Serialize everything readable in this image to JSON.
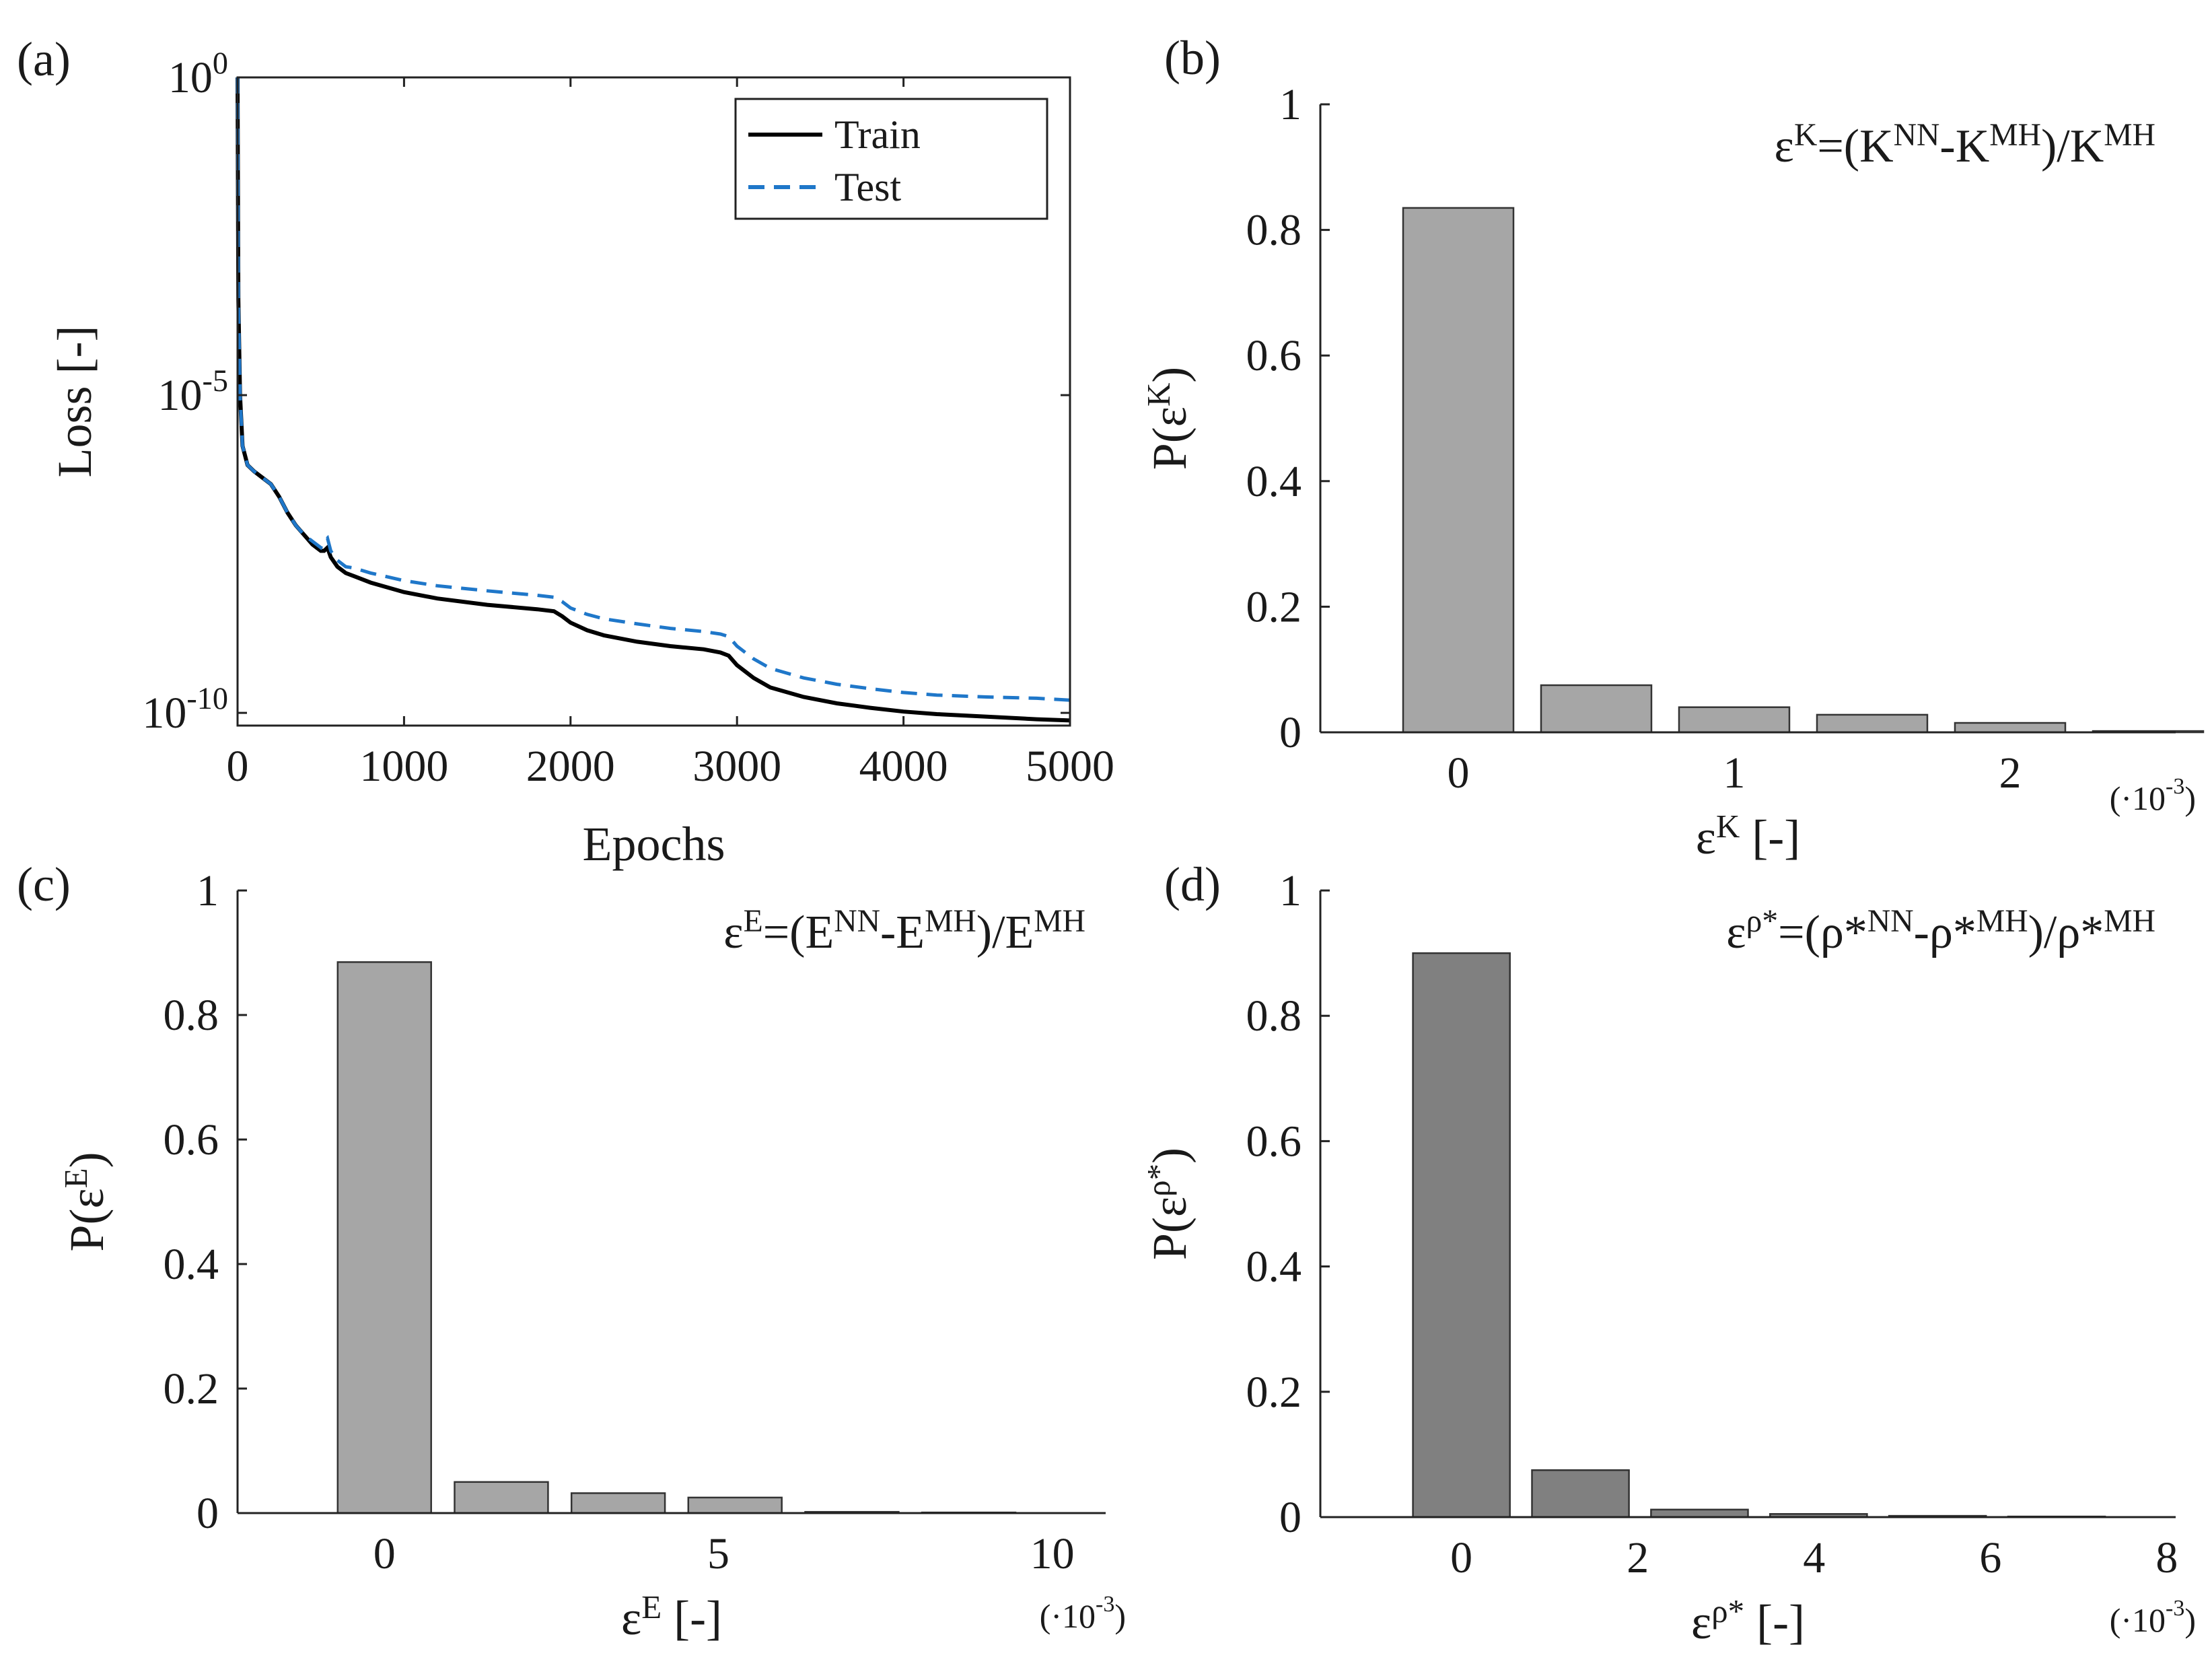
{
  "chart_data": [
    {
      "id": "a",
      "type": "line",
      "panel_label": "(a)",
      "xlabel": "Epochs",
      "ylabel": "Loss [-]",
      "xlim": [
        0,
        5000
      ],
      "yscale": "log",
      "ylim_log10": [
        -10.2,
        0
      ],
      "xticks": [
        0,
        1000,
        2000,
        3000,
        4000,
        5000
      ],
      "xtick_labels": [
        "0",
        "1000",
        "2000",
        "3000",
        "4000",
        "5000"
      ],
      "yticks_log10": [
        0,
        -5,
        -10
      ],
      "ytick_base": "10",
      "ytick_exponents": [
        "0",
        "-5",
        "-10"
      ],
      "legend": {
        "position": "top-right",
        "entries": [
          "Train",
          "Test"
        ]
      },
      "series": [
        {
          "name": "Train",
          "color": "#000000",
          "dash": "solid",
          "x": [
            0,
            5,
            15,
            30,
            60,
            100,
            150,
            200,
            250,
            300,
            350,
            400,
            450,
            500,
            520,
            540,
            560,
            600,
            650,
            700,
            800,
            1000,
            1200,
            1500,
            1800,
            1900,
            1950,
            2000,
            2100,
            2200,
            2400,
            2600,
            2800,
            2900,
            2950,
            3000,
            3100,
            3200,
            3400,
            3600,
            3800,
            4000,
            4200,
            4500,
            4800,
            5000
          ],
          "y_log10": [
            0,
            -3.5,
            -5.0,
            -5.8,
            -6.1,
            -6.2,
            -6.3,
            -6.4,
            -6.6,
            -6.85,
            -7.05,
            -7.2,
            -7.35,
            -7.45,
            -7.45,
            -7.4,
            -7.55,
            -7.7,
            -7.8,
            -7.85,
            -7.95,
            -8.1,
            -8.2,
            -8.3,
            -8.37,
            -8.4,
            -8.48,
            -8.58,
            -8.7,
            -8.78,
            -8.88,
            -8.95,
            -9.0,
            -9.05,
            -9.1,
            -9.25,
            -9.45,
            -9.6,
            -9.75,
            -9.85,
            -9.92,
            -9.98,
            -10.02,
            -10.06,
            -10.1,
            -10.12
          ]
        },
        {
          "name": "Test",
          "color": "#1f77c9",
          "dash": "dashed",
          "x": [
            0,
            5,
            15,
            30,
            60,
            100,
            150,
            200,
            250,
            300,
            350,
            400,
            450,
            500,
            520,
            540,
            560,
            600,
            650,
            700,
            800,
            1000,
            1200,
            1500,
            1800,
            1900,
            1950,
            2000,
            2100,
            2200,
            2400,
            2600,
            2800,
            2900,
            2950,
            3000,
            3100,
            3200,
            3400,
            3600,
            3800,
            4000,
            4200,
            4500,
            4800,
            5000
          ],
          "y_log10": [
            0,
            -3.5,
            -5.0,
            -5.8,
            -6.1,
            -6.2,
            -6.3,
            -6.4,
            -6.6,
            -6.85,
            -7.05,
            -7.2,
            -7.3,
            -7.4,
            -7.3,
            -7.25,
            -7.45,
            -7.6,
            -7.7,
            -7.72,
            -7.8,
            -7.92,
            -8.0,
            -8.08,
            -8.15,
            -8.18,
            -8.25,
            -8.35,
            -8.45,
            -8.52,
            -8.6,
            -8.67,
            -8.72,
            -8.76,
            -8.8,
            -8.95,
            -9.15,
            -9.3,
            -9.45,
            -9.55,
            -9.62,
            -9.68,
            -9.72,
            -9.75,
            -9.77,
            -9.8
          ]
        }
      ]
    },
    {
      "id": "b",
      "type": "bar",
      "panel_label": "(b)",
      "formula": "εK=(KNN-KMH)/KMH",
      "formula_parts": [
        "ε",
        "K",
        "=(K",
        "NN",
        "-K",
        "MH",
        ")/K",
        "MH"
      ],
      "xlabel_parts": [
        "ε",
        "K",
        " [-]"
      ],
      "ylabel_parts": [
        "P(ε",
        "K",
        ")"
      ],
      "multiplier": "(·10-3)",
      "multiplier_parts": [
        "(·10",
        "-3",
        ")"
      ],
      "bar_color": "#a6a6a6",
      "xlim": [
        -0.5,
        2.6
      ],
      "ylim": [
        0,
        1
      ],
      "x": [
        0,
        0.5,
        1.0,
        1.5,
        2.0,
        2.5
      ],
      "bar_width": 0.4,
      "values": [
        0.835,
        0.075,
        0.04,
        0.028,
        0.015,
        0.002
      ],
      "xticks": [
        0,
        1,
        2
      ],
      "xtick_labels": [
        "0",
        "1",
        "2"
      ],
      "yticks": [
        0,
        0.2,
        0.4,
        0.6,
        0.8,
        1
      ],
      "ytick_labels": [
        "0",
        "0.2",
        "0.4",
        "0.6",
        "0.8",
        "1"
      ]
    },
    {
      "id": "c",
      "type": "bar",
      "panel_label": "(c)",
      "formula": "εE=(ENN-EMH)/EMH",
      "formula_parts": [
        "ε",
        "E",
        "=(E",
        "NN",
        "-E",
        "MH",
        ")/E",
        "MH"
      ],
      "xlabel_parts": [
        "ε",
        "E",
        " [-]"
      ],
      "ylabel_parts": [
        "P(ε",
        "E",
        ")"
      ],
      "multiplier": "(·10-3)",
      "multiplier_parts": [
        "(·10",
        "-3",
        ")"
      ],
      "bar_color": "#a6a6a6",
      "xlim": [
        -2.2,
        10.8
      ],
      "ylim": [
        0,
        1
      ],
      "x": [
        0,
        1.75,
        3.5,
        5.25,
        7.0,
        8.75
      ],
      "bar_width": 1.4,
      "values": [
        0.885,
        0.05,
        0.032,
        0.025,
        0.002,
        0.001
      ],
      "xticks": [
        0,
        5,
        10
      ],
      "xtick_labels": [
        "0",
        "5",
        "10"
      ],
      "yticks": [
        0,
        0.2,
        0.4,
        0.6,
        0.8,
        1
      ],
      "ytick_labels": [
        "0",
        "0.2",
        "0.4",
        "0.6",
        "0.8",
        "1"
      ]
    },
    {
      "id": "d",
      "type": "bar",
      "panel_label": "(d)",
      "formula": "ερ*=(ρ*NN-ρ*MH)/ρ*MH",
      "formula_parts": [
        "ε",
        "ρ*",
        "=(ρ*",
        "NN",
        "-ρ*",
        "MH",
        ")/ρ*",
        "MH"
      ],
      "xlabel_parts": [
        "ε",
        "ρ*",
        " [-]"
      ],
      "ylabel_parts": [
        "P(ε",
        "ρ*",
        ")"
      ],
      "multiplier": "(·10-3)",
      "multiplier_parts": [
        "(·10",
        "-3",
        ")"
      ],
      "bar_color": "#808080",
      "xlim": [
        -1.6,
        8.1
      ],
      "ylim": [
        0,
        1
      ],
      "x": [
        0,
        1.35,
        2.7,
        4.05,
        5.4,
        6.75
      ],
      "bar_width": 1.1,
      "values": [
        0.9,
        0.075,
        0.012,
        0.005,
        0.002,
        0.001
      ],
      "xticks": [
        0,
        2,
        4,
        6,
        8
      ],
      "xtick_labels": [
        "0",
        "2",
        "4",
        "6",
        "8"
      ],
      "yticks": [
        0,
        0.2,
        0.4,
        0.6,
        0.8,
        1
      ],
      "ytick_labels": [
        "0",
        "0.2",
        "0.4",
        "0.6",
        "0.8",
        "1"
      ]
    }
  ]
}
